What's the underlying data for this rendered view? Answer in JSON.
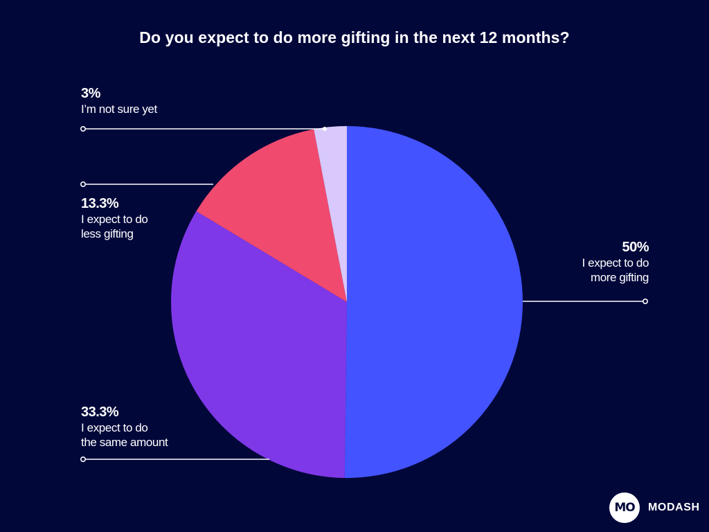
{
  "chart_data": {
    "type": "pie",
    "title": "Do you expect to do more gifting in the next 12 months?",
    "slices": [
      {
        "label": "I expect to do\nmore gifting",
        "value": 50,
        "value_label": "50%",
        "color": "#4353ff"
      },
      {
        "label": "I expect to do\nthe same amount",
        "value": 33.3,
        "value_label": "33.3%",
        "color": "#7f38e8"
      },
      {
        "label": "I expect to do\nless gifting",
        "value": 13.3,
        "value_label": "13.3%",
        "color": "#f04a6f"
      },
      {
        "label": "I’m not sure yet",
        "value": 3,
        "value_label": "3%",
        "color": "#d8c8fb"
      }
    ],
    "start": "12 o'clock",
    "direction": "clockwise",
    "legend": "none"
  },
  "brand": {
    "logo_text": "MO",
    "name": "MODASH"
  }
}
